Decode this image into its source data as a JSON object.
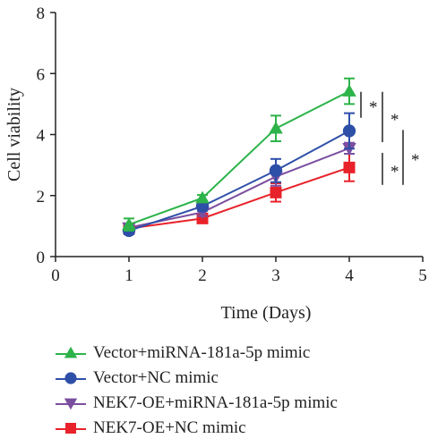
{
  "chart_data": {
    "type": "line",
    "xlabel": "Time (Days)",
    "ylabel": "Cell viability",
    "xlim": [
      0,
      5
    ],
    "ylim": [
      0,
      8
    ],
    "x_ticks": [
      "0",
      "1",
      "2",
      "3",
      "4",
      "5"
    ],
    "y_ticks": [
      "0",
      "2",
      "4",
      "6",
      "8"
    ],
    "x": [
      1,
      2,
      3,
      4
    ],
    "series": [
      {
        "name": "Vector+miRNA-181a-5p mimic",
        "color": "#2db34a",
        "marker": "triangle-up",
        "values": [
          1.05,
          1.92,
          4.2,
          5.42
        ],
        "errors": [
          0.2,
          0.1,
          0.42,
          0.42
        ]
      },
      {
        "name": "Vector+NC mimic",
        "color": "#2e4fa8",
        "marker": "circle",
        "values": [
          0.85,
          1.65,
          2.82,
          4.12
        ],
        "errors": [
          0.12,
          0.15,
          0.38,
          0.58
        ]
      },
      {
        "name": "NEK7-OE+miRNA-181a-5p mimic",
        "color": "#7b4fa0",
        "marker": "triangle-down",
        "values": [
          0.95,
          1.45,
          2.62,
          3.55
        ],
        "errors": [
          0.1,
          0.12,
          0.3,
          0.18
        ]
      },
      {
        "name": "NEK7-OE+NC mimic",
        "color": "#e8222a",
        "marker": "square",
        "values": [
          0.92,
          1.25,
          2.1,
          2.92
        ],
        "errors": [
          0.1,
          0.08,
          0.3,
          0.45
        ]
      }
    ],
    "significance": [
      {
        "label": "*",
        "y_from": 5.4,
        "y_to": 4.55
      },
      {
        "label": "*",
        "y_from": 5.4,
        "y_to": 3.75
      },
      {
        "label": "*",
        "y_from": 3.4,
        "y_to": 2.35
      },
      {
        "label": "*",
        "y_from": 4.15,
        "y_to": 2.35
      }
    ],
    "grid": false,
    "legend_position": "bottom"
  }
}
